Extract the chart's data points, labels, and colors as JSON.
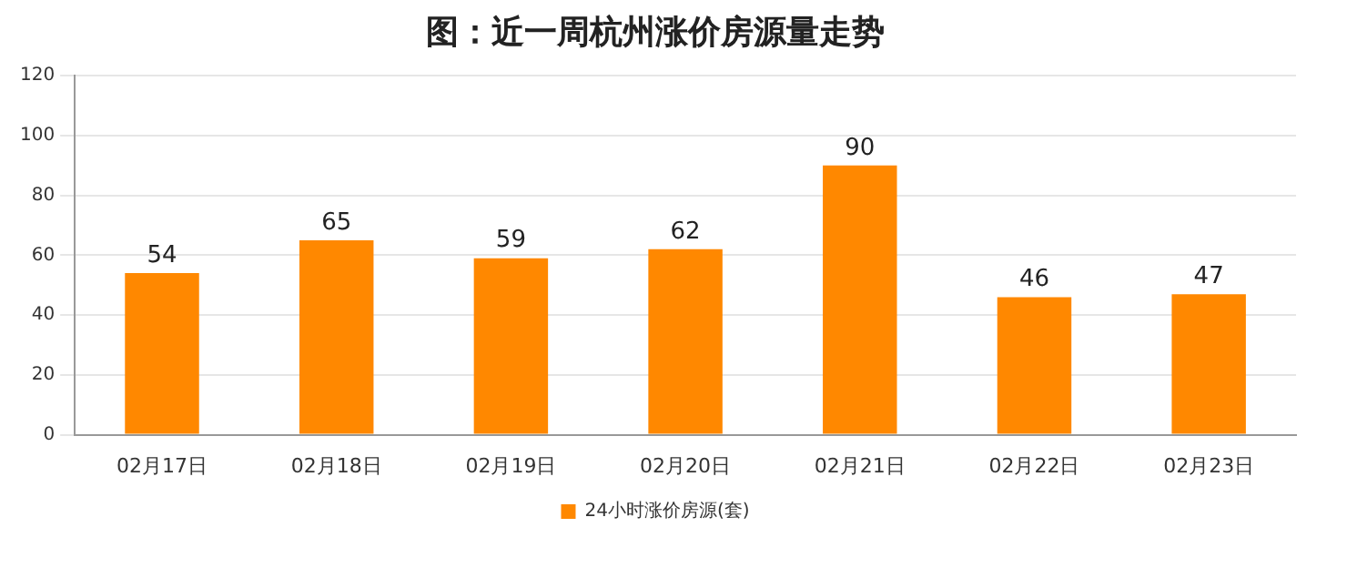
{
  "chart_data": {
    "type": "bar",
    "title": "图：近一周杭州涨价房源量走势",
    "categories": [
      "02月17日",
      "02月18日",
      "02月19日",
      "02月20日",
      "02月21日",
      "02月22日",
      "02月23日"
    ],
    "series": [
      {
        "name": "24小时涨价房源(套)",
        "color": "#ff8800",
        "values": [
          54,
          65,
          59,
          62,
          90,
          46,
          47
        ]
      }
    ],
    "ylim": [
      0,
      120
    ],
    "yticks": [
      0,
      20,
      40,
      60,
      80,
      100,
      120
    ],
    "grid": "y",
    "legend": "bottom",
    "data_labels": true
  }
}
